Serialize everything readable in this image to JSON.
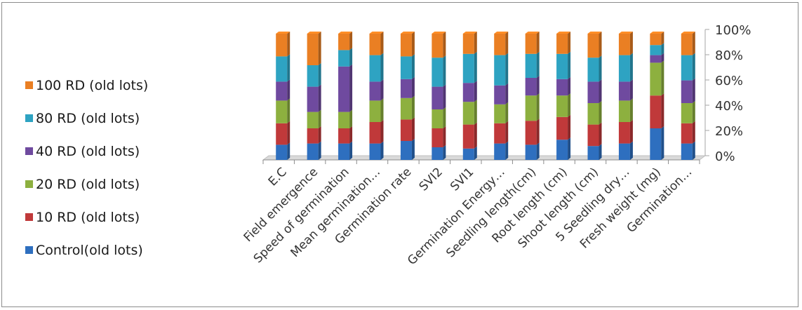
{
  "chart_data": {
    "type": "bar",
    "stacked": "percent",
    "categories": [
      "E.C",
      "Field emergence",
      "Speed of germination",
      "Mean germination…",
      "Germination rate",
      "SVI2",
      "SVI1",
      "Germination Energy…",
      "Seedling length(cm)",
      "Root length (cm)",
      "Shoot length (cm)",
      "5 Seedling dry…",
      "Fresh weight (mg)",
      "Germination…"
    ],
    "series": [
      {
        "name": "Control(old lots)",
        "color": "#2e6fbf",
        "values": [
          12,
          13,
          13,
          13,
          15,
          10,
          9,
          13,
          12,
          16,
          11,
          13,
          25,
          13
        ]
      },
      {
        "name": "10 RD (old lots)",
        "color": "#c0393a",
        "values": [
          17,
          12,
          12,
          17,
          17,
          15,
          19,
          16,
          19,
          18,
          17,
          17,
          26,
          16
        ]
      },
      {
        "name": "20 RD (old lots)",
        "color": "#8db03f",
        "values": [
          18,
          13,
          13,
          17,
          17,
          15,
          18,
          15,
          20,
          17,
          17,
          17,
          26,
          16
        ]
      },
      {
        "name": "40 RD (old lots)",
        "color": "#6f4a9f",
        "values": [
          15,
          20,
          36,
          15,
          15,
          18,
          15,
          15,
          14,
          13,
          17,
          15,
          6,
          18
        ]
      },
      {
        "name": "80 RD (old lots)",
        "color": "#2ea3c2",
        "values": [
          20,
          17,
          13,
          21,
          18,
          23,
          23,
          24,
          19,
          20,
          19,
          21,
          8,
          20
        ]
      },
      {
        "name": "100 RD (old lots)",
        "color": "#ea7f23",
        "values": [
          18,
          25,
          13,
          17,
          18,
          19,
          16,
          17,
          16,
          16,
          19,
          17,
          9,
          17
        ]
      }
    ],
    "legend_order": [
      5,
      4,
      3,
      2,
      1,
      0
    ],
    "y_tick_labels": [
      "0%",
      "20%",
      "40%",
      "60%",
      "80%",
      "100%"
    ],
    "ylim": [
      0,
      100
    ],
    "legend_position": "left",
    "grid": false,
    "title": "",
    "xlabel": "",
    "ylabel": ""
  }
}
